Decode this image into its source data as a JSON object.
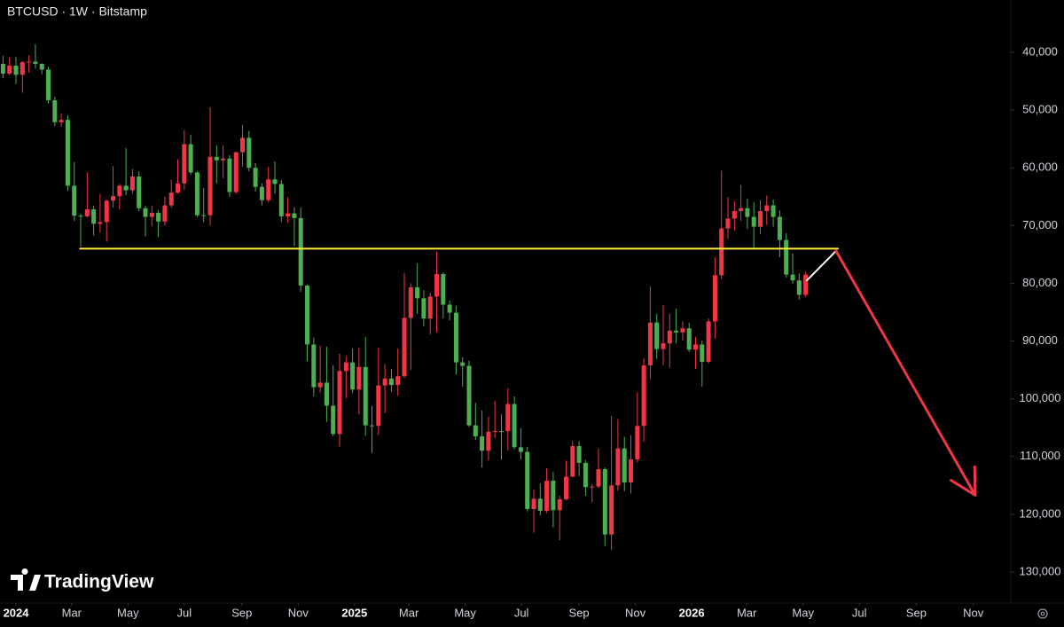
{
  "chart_data": {
    "type": "candlestick",
    "title": "BTCUSD · 1W · Bitstamp",
    "watermark": "TradingView",
    "y_inverted": true,
    "up_color": "#4caf50",
    "down_color": "#f23645",
    "xlim": [
      -2.47,
      153.7
    ],
    "ylim": [
      30940,
      135380
    ],
    "yticks": [
      {
        "value": 40000,
        "label": "40,000"
      },
      {
        "value": 50000,
        "label": "50,000"
      },
      {
        "value": 60000,
        "label": "60,000"
      },
      {
        "value": 70000,
        "label": "70,000"
      },
      {
        "value": 80000,
        "label": "80,000"
      },
      {
        "value": 90000,
        "label": "90,000"
      },
      {
        "value": 100000,
        "label": "100,000"
      },
      {
        "value": 110000,
        "label": "110,000"
      },
      {
        "value": 120000,
        "label": "120,000"
      },
      {
        "value": 130000,
        "label": "130,000"
      }
    ],
    "xticks": [
      {
        "value": 0,
        "label": "2024"
      },
      {
        "value": 8.6,
        "label": "Mar"
      },
      {
        "value": 17.3,
        "label": "May"
      },
      {
        "value": 26,
        "label": "Jul"
      },
      {
        "value": 34.9,
        "label": "Sep"
      },
      {
        "value": 43.6,
        "label": "Nov"
      },
      {
        "value": 52.3,
        "label": "2025"
      },
      {
        "value": 60.7,
        "label": "Mar"
      },
      {
        "value": 69.4,
        "label": "May"
      },
      {
        "value": 78.1,
        "label": "Jul"
      },
      {
        "value": 87,
        "label": "Sep"
      },
      {
        "value": 95.7,
        "label": "Nov"
      },
      {
        "value": 104.4,
        "label": "2026"
      },
      {
        "value": 112.9,
        "label": "Mar"
      },
      {
        "value": 121.6,
        "label": "May"
      },
      {
        "value": 130.3,
        "label": "Jul"
      },
      {
        "value": 139.1,
        "label": "Sep"
      },
      {
        "value": 147.9,
        "label": "Nov"
      }
    ],
    "x": [
      -2,
      -1,
      0,
      1,
      2,
      3,
      4,
      5,
      6,
      7,
      8,
      9,
      10,
      11,
      12,
      13,
      14,
      15,
      16,
      17,
      18,
      19,
      20,
      21,
      22,
      23,
      24,
      25,
      26,
      27,
      28,
      29,
      30,
      31,
      32,
      33,
      34,
      35,
      36,
      37,
      38,
      39,
      40,
      41,
      42,
      43,
      44,
      45,
      46,
      47,
      48,
      49,
      50,
      51,
      52,
      53,
      54,
      55,
      56,
      57,
      58,
      59,
      60,
      61,
      62,
      63,
      64,
      65,
      66,
      67,
      68,
      69,
      70,
      71,
      72,
      73,
      74,
      75,
      76,
      77,
      78,
      79,
      80,
      81,
      82,
      83,
      84,
      85,
      86,
      87,
      88,
      89,
      90,
      91,
      92,
      93,
      94,
      95,
      96,
      97,
      98,
      99,
      100,
      101,
      102,
      103,
      104,
      105,
      106,
      107,
      108,
      109,
      110,
      111,
      112,
      113,
      114,
      115,
      116,
      117,
      118,
      119,
      120,
      121,
      122
    ],
    "open": [
      42000,
      43700,
      42300,
      43900,
      41700,
      41600,
      42000,
      43000,
      48300,
      52100,
      51700,
      63100,
      68300,
      68400,
      67200,
      69700,
      69400,
      65700,
      64900,
      63100,
      63900,
      61500,
      67000,
      68500,
      67800,
      69300,
      66500,
      64300,
      62700,
      55900,
      60800,
      68200,
      68200,
      58100,
      58700,
      58400,
      64200,
      57300,
      54800,
      60000,
      63300,
      65600,
      62000,
      62800,
      68400,
      67900,
      68700,
      80400,
      90600,
      98000,
      97200,
      101200,
      106100,
      95200,
      93700,
      98400,
      94500,
      104600,
      104700,
      97700,
      96500,
      97600,
      96100,
      86000,
      80700,
      82600,
      86100,
      82300,
      78400,
      83700,
      85100,
      93700,
      94300,
      104600,
      106500,
      109000,
      105700,
      105600,
      105600,
      100900,
      108400,
      109200,
      119100,
      117300,
      119400,
      114200,
      119300,
      117400,
      113500,
      108200,
      111100,
      115300,
      115200,
      112200,
      123500,
      115000,
      108600,
      114500,
      110500,
      104700,
      94200,
      86800,
      91400,
      90400,
      88200,
      88500,
      87800,
      91500,
      90600,
      93600,
      86600,
      78600,
      70500,
      68800,
      67500,
      67000,
      68500,
      70200,
      67500,
      66500,
      68500,
      72500,
      78500,
      79500,
      82000
    ],
    "close": [
      43700,
      42300,
      43900,
      41700,
      41600,
      42000,
      43000,
      48300,
      52100,
      51700,
      63100,
      68300,
      68400,
      67200,
      69700,
      69400,
      65700,
      64900,
      63100,
      63900,
      61500,
      67000,
      68500,
      67800,
      69300,
      66500,
      64300,
      62700,
      55900,
      60800,
      68200,
      68200,
      58100,
      58700,
      58400,
      64200,
      57300,
      54800,
      60000,
      63300,
      65600,
      62000,
      62800,
      68400,
      67900,
      68700,
      80400,
      90600,
      98000,
      97200,
      101200,
      106100,
      95200,
      93700,
      98400,
      94500,
      104600,
      104700,
      97700,
      96500,
      97600,
      96100,
      86000,
      80700,
      82600,
      86100,
      82300,
      78400,
      83700,
      85100,
      93700,
      94300,
      104600,
      106500,
      109000,
      105700,
      105600,
      105600,
      100900,
      108400,
      109200,
      119100,
      117300,
      119400,
      114200,
      119300,
      117400,
      113500,
      108200,
      111100,
      115300,
      115200,
      112200,
      123500,
      115000,
      108600,
      114500,
      110500,
      104700,
      94200,
      86800,
      91400,
      90400,
      88200,
      88500,
      87800,
      91500,
      90600,
      93600,
      86600,
      78600,
      70500,
      68800,
      67500,
      67000,
      68500,
      70200,
      67500,
      66500,
      68500,
      72500,
      78500,
      79500,
      82000,
      78500
    ],
    "high": [
      44500,
      44000,
      45500,
      47000,
      43500,
      42800,
      43800,
      48900,
      52800,
      52900,
      64000,
      69200,
      73600,
      68600,
      71700,
      71200,
      72800,
      66900,
      67200,
      64700,
      64500,
      67500,
      71900,
      70100,
      72000,
      70000,
      66900,
      64500,
      63800,
      61200,
      68500,
      69400,
      70000,
      62700,
      61800,
      65000,
      64500,
      59800,
      60600,
      64100,
      66500,
      66000,
      64500,
      69400,
      69500,
      73600,
      81500,
      93500,
      99600,
      98900,
      104000,
      106500,
      108300,
      99900,
      99000,
      102700,
      106400,
      109400,
      106300,
      102500,
      98800,
      99500,
      96400,
      95000,
      85300,
      87500,
      88800,
      88500,
      86100,
      86400,
      95800,
      97900,
      104900,
      107100,
      111900,
      110700,
      106800,
      110500,
      108900,
      108800,
      110500,
      119500,
      123200,
      120200,
      119800,
      122300,
      124500,
      117600,
      113600,
      113400,
      116800,
      117900,
      115500,
      125500,
      126200,
      115900,
      116000,
      116400,
      111000,
      107500,
      96600,
      93100,
      94200,
      94600,
      90400,
      89900,
      91900,
      94800,
      97900,
      93900,
      89600,
      79300,
      72300,
      70900,
      69200,
      70600,
      74200,
      71500,
      69900,
      70200,
      75500,
      79000,
      80100,
      82800,
      82400
    ],
    "low": [
      40600,
      40900,
      40800,
      41500,
      40500,
      38600,
      41900,
      42500,
      47700,
      50600,
      50900,
      59000,
      68000,
      60800,
      66600,
      64500,
      65500,
      59700,
      62800,
      56600,
      60200,
      60600,
      66600,
      66600,
      67300,
      65000,
      62100,
      58500,
      53500,
      54300,
      60600,
      63500,
      49500,
      56100,
      56100,
      57800,
      57200,
      52600,
      53600,
      59200,
      62700,
      59800,
      58900,
      62100,
      65100,
      66800,
      66900,
      80200,
      89400,
      90800,
      91000,
      94200,
      92200,
      92600,
      91300,
      91200,
      89300,
      101200,
      91200,
      94000,
      94800,
      91300,
      78200,
      80000,
      76600,
      81200,
      81600,
      74500,
      78100,
      83000,
      83900,
      92800,
      93400,
      100700,
      102000,
      103100,
      100400,
      102700,
      98200,
      99600,
      105100,
      108300,
      115700,
      114700,
      112000,
      112700,
      116800,
      110700,
      107300,
      107300,
      110600,
      114800,
      108600,
      111900,
      103000,
      103500,
      106600,
      106300,
      98900,
      93000,
      80600,
      85300,
      83800,
      85300,
      84400,
      86600,
      86800,
      89300,
      89900,
      86100,
      75500,
      60500,
      65100,
      65800,
      63000,
      65300,
      66000,
      65600,
      64800,
      65500,
      67400,
      71300,
      74800,
      78300,
      78000
    ],
    "drawings": [
      {
        "kind": "horizontal-line",
        "color": "#ffeb3b",
        "x": [
          9.9,
          127
        ],
        "y": [
          74000,
          74000
        ]
      },
      {
        "kind": "segment",
        "color": "#ffffff",
        "x": [
          122.2,
          126.7
        ],
        "y": [
          79500,
          74400
        ]
      },
      {
        "kind": "arrow",
        "color": "#f23645",
        "x": [
          126.7,
          148.2
        ],
        "y": [
          74400,
          116700
        ]
      }
    ]
  }
}
